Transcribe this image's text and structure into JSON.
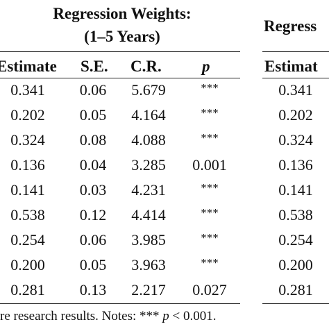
{
  "left_table": {
    "title_line1": "Regression Weights:",
    "title_line2": "(1–5 Years)",
    "headers": [
      "Estimate",
      "S.E.",
      "C.R.",
      "p"
    ],
    "rows": [
      [
        "0.341",
        "0.06",
        "5.679",
        "***"
      ],
      [
        "0.202",
        "0.05",
        "4.164",
        "***"
      ],
      [
        "0.324",
        "0.08",
        "4.088",
        "***"
      ],
      [
        "0.136",
        "0.04",
        "3.285",
        "0.001"
      ],
      [
        "0.141",
        "0.03",
        "4.231",
        "***"
      ],
      [
        "0.538",
        "0.12",
        "4.414",
        "***"
      ],
      [
        "0.254",
        "0.06",
        "3.985",
        "***"
      ],
      [
        "0.200",
        "0.05",
        "3.963",
        "***"
      ],
      [
        "0.281",
        "0.13",
        "2.217",
        "0.027"
      ]
    ]
  },
  "right_table": {
    "title_fragment": "Regress",
    "header_fragment": "Estimat",
    "rows": [
      "0.341",
      "0.202",
      "0.324",
      "0.136",
      "0.141",
      "0.538",
      "0.254",
      "0.200",
      "0.281"
    ]
  },
  "footnote": {
    "text_before": "re research results. Notes: ***",
    "italic_p": "p",
    "text_after": " < 0.001."
  }
}
